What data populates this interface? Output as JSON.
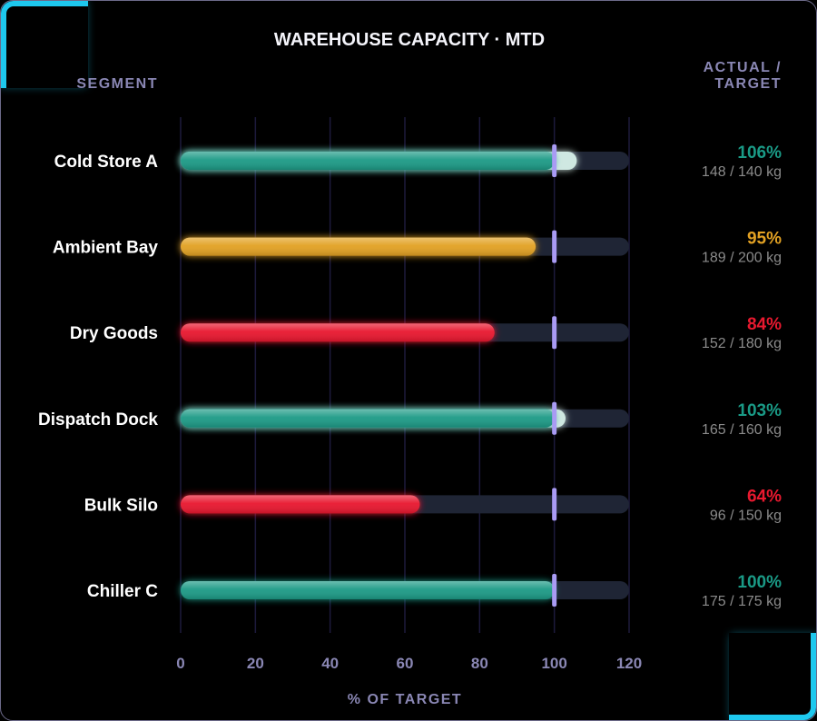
{
  "chart_data": {
    "type": "bar",
    "orientation": "horizontal",
    "title": "WAREHOUSE CAPACITY · MTD",
    "category_header": "SEGMENT",
    "value_header_line1": "ACTUAL /",
    "value_header_line2": "TARGET",
    "xlabel": "% OF TARGET",
    "xlim": [
      0,
      120
    ],
    "xticks": [
      0,
      20,
      40,
      60,
      80,
      100,
      120
    ],
    "target_line": 100,
    "unit": "kg",
    "categories": [
      "Cold Store A",
      "Ambient Bay",
      "Dry Goods",
      "Dispatch Dock",
      "Bulk Silo",
      "Chiller C"
    ],
    "values": [
      106,
      95,
      84,
      103,
      64,
      100
    ],
    "pct_labels": [
      "106%",
      "95%",
      "84%",
      "103%",
      "64%",
      "100%"
    ],
    "detail_labels": [
      "148 / 140 kg",
      "189 / 200 kg",
      "152 / 180 kg",
      "165 / 160 kg",
      "96 / 150 kg",
      "175 / 175 kg"
    ],
    "bar_colors": [
      "#1a9a86",
      "#e2a123",
      "#e8192f",
      "#1a9a86",
      "#e8192f",
      "#1a9a86"
    ],
    "overflow_color": "#cfe8e2",
    "track_color": "#1f2535",
    "target_color": "#a99bf4",
    "grid": true
  }
}
